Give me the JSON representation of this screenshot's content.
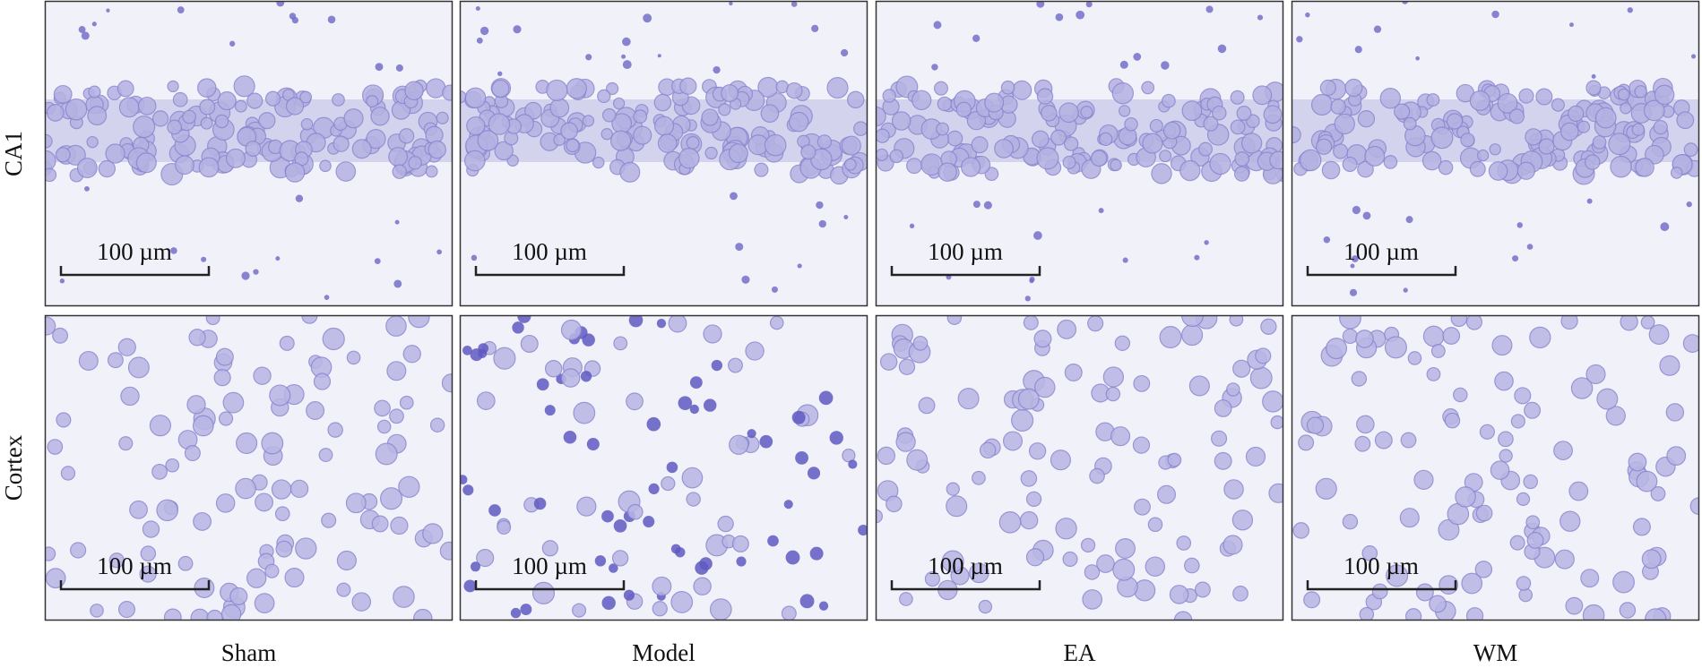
{
  "figure": {
    "columns": [
      "Sham",
      "Model",
      "EA",
      "WM"
    ],
    "rows": [
      {
        "label": "CA1",
        "panels": [
          {
            "scale_bar": "100 µm"
          },
          {
            "scale_bar": "100 µm"
          },
          {
            "scale_bar": "100 µm"
          },
          {
            "scale_bar": "100 µm"
          }
        ]
      },
      {
        "label": "Cortex",
        "panels": [
          {
            "scale_bar": "100 µm"
          },
          {
            "scale_bar": "100 µm"
          },
          {
            "scale_bar": "100 µm"
          },
          {
            "scale_bar": "100 µm"
          }
        ]
      }
    ]
  }
}
